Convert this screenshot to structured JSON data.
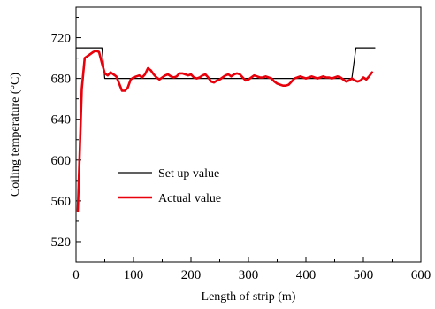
{
  "chart_data": {
    "type": "line",
    "xlabel": "Length of strip (m)",
    "ylabel": "Coiling temperature (°C)",
    "xlim": [
      0,
      600
    ],
    "ylim": [
      500,
      750
    ],
    "xticks": [
      0,
      100,
      200,
      300,
      400,
      500,
      600
    ],
    "yticks": [
      520,
      560,
      600,
      640,
      680,
      720
    ],
    "grid": false,
    "legend_position": "center-left",
    "series": [
      {
        "name": "Set up value",
        "color": "#000000",
        "x": [
          0,
          45,
          50,
          480,
          487,
          520
        ],
        "y": [
          710,
          710,
          680,
          680,
          710,
          710
        ]
      },
      {
        "name": "Actual value",
        "color": "#e8000b",
        "x": [
          3,
          6,
          10,
          15,
          20,
          25,
          30,
          35,
          40,
          45,
          50,
          55,
          60,
          65,
          70,
          75,
          80,
          85,
          90,
          95,
          100,
          105,
          110,
          115,
          120,
          125,
          130,
          135,
          140,
          145,
          150,
          155,
          160,
          165,
          170,
          175,
          180,
          185,
          190,
          195,
          200,
          205,
          210,
          215,
          220,
          225,
          230,
          235,
          240,
          245,
          250,
          255,
          260,
          265,
          270,
          275,
          280,
          285,
          290,
          295,
          300,
          305,
          310,
          315,
          320,
          325,
          330,
          335,
          340,
          345,
          350,
          355,
          360,
          365,
          370,
          375,
          380,
          385,
          390,
          395,
          400,
          405,
          410,
          415,
          420,
          425,
          430,
          435,
          440,
          445,
          450,
          455,
          460,
          465,
          470,
          475,
          480,
          485,
          490,
          495,
          500,
          505,
          510,
          515
        ],
        "y": [
          550,
          600,
          670,
          700,
          702,
          704,
          706,
          707,
          706,
          695,
          685,
          683,
          686,
          684,
          682,
          675,
          668,
          668,
          671,
          679,
          681,
          682,
          683,
          681,
          684,
          690,
          688,
          684,
          681,
          679,
          681,
          683,
          684,
          682,
          681,
          682,
          685,
          685,
          684,
          683,
          684,
          681,
          680,
          681,
          683,
          684,
          681,
          677,
          676,
          678,
          679,
          681,
          683,
          684,
          682,
          684,
          685,
          684,
          681,
          678,
          679,
          681,
          683,
          682,
          681,
          681,
          682,
          681,
          680,
          677,
          675,
          674,
          673,
          673,
          674,
          677,
          680,
          681,
          682,
          681,
          680,
          681,
          682,
          681,
          680,
          681,
          682,
          681,
          681,
          680,
          681,
          682,
          681,
          679,
          677,
          678,
          680,
          678,
          677,
          678,
          681,
          679,
          682,
          686
        ]
      }
    ]
  }
}
